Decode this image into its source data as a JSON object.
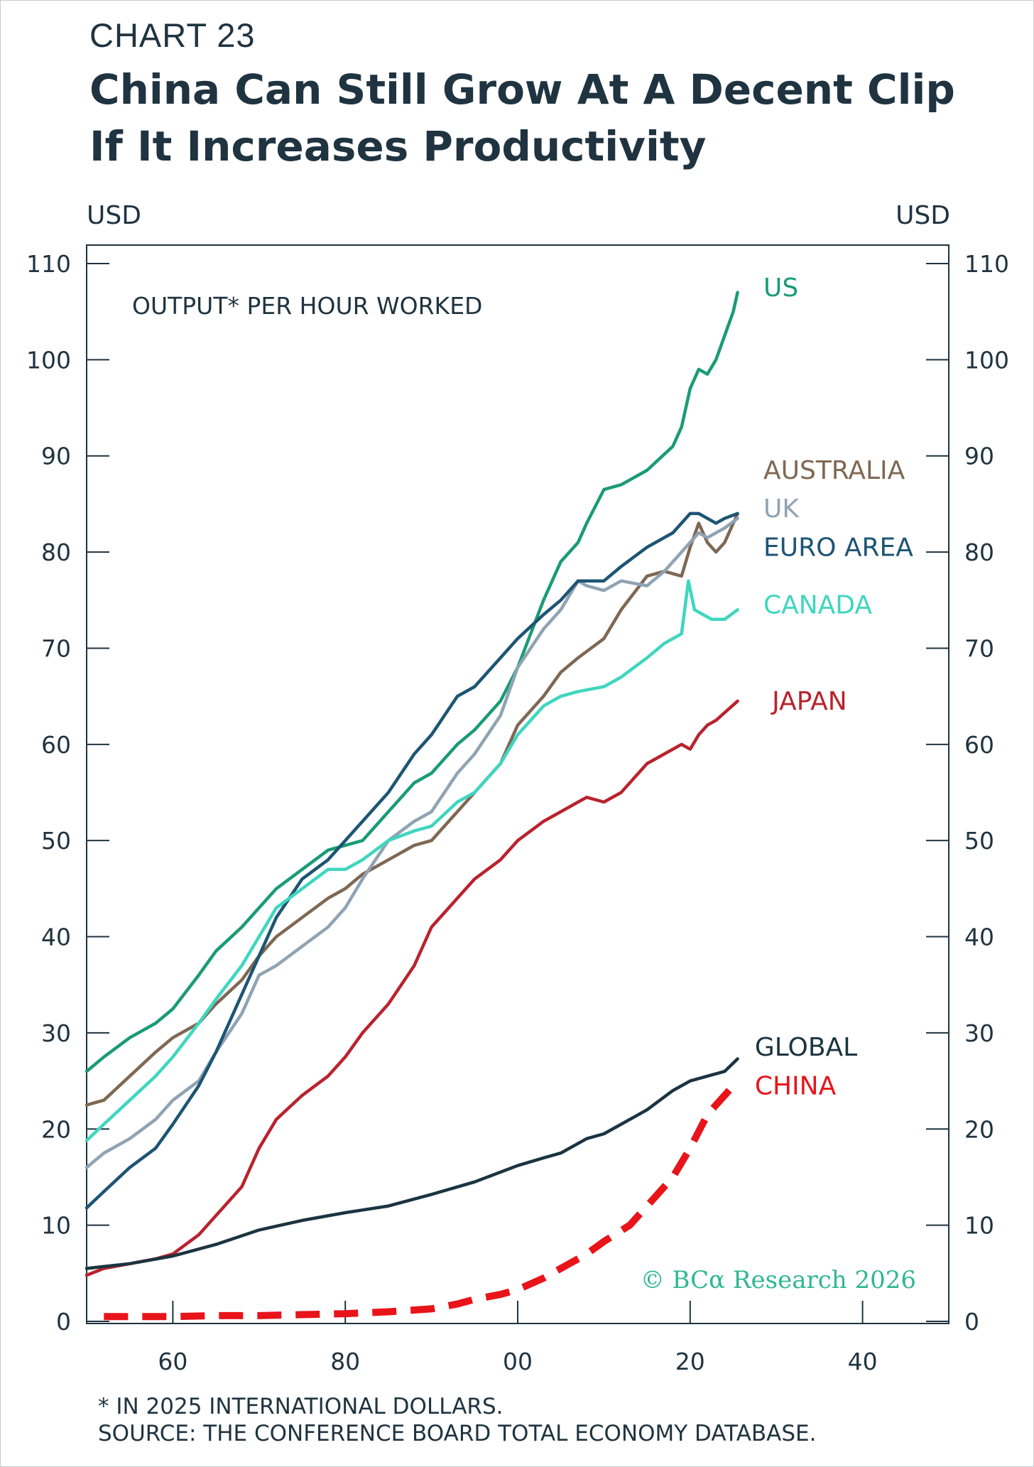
{
  "header": {
    "chart_number": "CHART 23",
    "title": "China Can Still Grow At A Decent Clip If It Increases Productivity"
  },
  "footnotes": {
    "note": "* IN 2025 INTERNATIONAL DOLLARS.",
    "source": "SOURCE: THE CONFERENCE BOARD TOTAL ECONOMY DATABASE."
  },
  "copyright": "© BCα Research 2026",
  "chart_data": {
    "type": "line",
    "subtitle": "OUTPUT* PER HOUR WORKED",
    "y_unit_left": "USD",
    "y_unit_right": "USD",
    "xlim": [
      1950,
      2050
    ],
    "ylim": [
      0,
      110
    ],
    "x_ticks": [
      1960,
      1980,
      2000,
      2020,
      2040
    ],
    "x_tick_labels": [
      "60",
      "80",
      "00",
      "20",
      "40"
    ],
    "y_ticks": [
      0,
      10,
      20,
      30,
      40,
      50,
      60,
      70,
      80,
      90,
      100,
      110
    ],
    "y_tick_labels": [
      "0",
      "10",
      "20",
      "30",
      "40",
      "50",
      "60",
      "70",
      "80",
      "90",
      "100",
      "110"
    ],
    "grid": false,
    "series": [
      {
        "name": "US",
        "color": "#1a9b76",
        "dashed": false,
        "label_anchor": [
          2028.5,
          107.5
        ],
        "x": [
          1950,
          1952,
          1955,
          1958,
          1960,
          1963,
          1965,
          1968,
          1970,
          1972,
          1975,
          1978,
          1980,
          1982,
          1985,
          1988,
          1990,
          1993,
          1995,
          1998,
          2000,
          2003,
          2005,
          2007,
          2008,
          2010,
          2012,
          2015,
          2018,
          2019,
          2020,
          2021,
          2022,
          2023,
          2025,
          2025.5
        ],
        "y": [
          26,
          27.5,
          29.5,
          31,
          32.5,
          36,
          38.5,
          41,
          43,
          45,
          47,
          49,
          49.5,
          50,
          53,
          56,
          57,
          60,
          61.5,
          64.5,
          68,
          75,
          79,
          81,
          83,
          86.5,
          87,
          88.5,
          91,
          93,
          97,
          99,
          98.5,
          100,
          105,
          107
        ]
      },
      {
        "name": "AUSTRALIA",
        "color": "#7f6853",
        "dashed": false,
        "label_anchor": [
          2028.5,
          88.5
        ],
        "x": [
          1950,
          1952,
          1955,
          1958,
          1960,
          1963,
          1965,
          1968,
          1970,
          1972,
          1975,
          1978,
          1980,
          1982,
          1985,
          1988,
          1990,
          1993,
          1995,
          1998,
          2000,
          2003,
          2005,
          2007,
          2010,
          2012,
          2015,
          2017,
          2019,
          2020,
          2021,
          2022,
          2023,
          2024,
          2025.5
        ],
        "y": [
          22.5,
          23,
          25.5,
          28,
          29.5,
          31,
          33,
          35.5,
          38,
          40,
          42,
          44,
          45,
          46.5,
          48,
          49.5,
          50,
          53,
          55,
          58,
          62,
          65,
          67.5,
          69,
          71,
          74,
          77.5,
          78,
          77.5,
          80.5,
          83,
          81,
          80,
          81,
          84
        ]
      },
      {
        "name": "UK",
        "color": "#8fa3b3",
        "dashed": false,
        "label_anchor": [
          2028.5,
          84.5
        ],
        "x": [
          1950,
          1952,
          1955,
          1958,
          1960,
          1963,
          1965,
          1968,
          1970,
          1972,
          1975,
          1978,
          1980,
          1982,
          1985,
          1988,
          1990,
          1993,
          1995,
          1998,
          2000,
          2003,
          2005,
          2007,
          2008,
          2010,
          2012,
          2015,
          2017,
          2019,
          2021,
          2022,
          2023,
          2024,
          2025.5
        ],
        "y": [
          16,
          17.5,
          19,
          21,
          23,
          25,
          28,
          32,
          36,
          37,
          39,
          41,
          43,
          46,
          50,
          52,
          53,
          57,
          59,
          63,
          68,
          72,
          74,
          77,
          76.5,
          76,
          77,
          76.5,
          78,
          80,
          82,
          81.5,
          82,
          82.5,
          83.5
        ]
      },
      {
        "name": "EURO AREA",
        "color": "#1d5573",
        "dashed": false,
        "label_anchor": [
          2028.5,
          80.5
        ],
        "x": [
          1950,
          1952,
          1955,
          1958,
          1960,
          1963,
          1965,
          1968,
          1970,
          1972,
          1975,
          1978,
          1980,
          1982,
          1985,
          1988,
          1990,
          1993,
          1995,
          1998,
          2000,
          2003,
          2005,
          2007,
          2008,
          2010,
          2012,
          2015,
          2018,
          2020,
          2021,
          2022,
          2023,
          2024,
          2025.5
        ],
        "y": [
          11.8,
          13.5,
          16,
          18,
          20.5,
          24.5,
          28,
          34,
          38,
          42,
          46,
          48,
          50,
          52,
          55,
          59,
          61,
          65,
          66,
          69,
          71,
          73.5,
          75,
          77,
          77,
          77,
          78.5,
          80.5,
          82,
          84,
          84,
          83.5,
          83,
          83.5,
          84
        ]
      },
      {
        "name": "CANADA",
        "color": "#3fd6bf",
        "dashed": false,
        "label_anchor": [
          2028.5,
          74.5
        ],
        "x": [
          1950,
          1952,
          1955,
          1958,
          1960,
          1963,
          1965,
          1968,
          1970,
          1972,
          1975,
          1978,
          1980,
          1982,
          1985,
          1988,
          1990,
          1993,
          1995,
          1998,
          2000,
          2003,
          2005,
          2007,
          2010,
          2012,
          2015,
          2017,
          2019,
          2019.8,
          2020.5,
          2021.5,
          2022.5,
          2024,
          2025.5
        ],
        "y": [
          18.8,
          20.5,
          23,
          25.5,
          27.5,
          31,
          33.5,
          37,
          40,
          43,
          45,
          47,
          47,
          48,
          50,
          51,
          51.5,
          54,
          55,
          58,
          61,
          64,
          65,
          65.5,
          66,
          67,
          69,
          70.5,
          71.5,
          77,
          74,
          73.5,
          73,
          73,
          74
        ]
      },
      {
        "name": "JAPAN",
        "color": "#b8232d",
        "dashed": false,
        "label_anchor": [
          2029.5,
          64.5
        ],
        "x": [
          1950,
          1952,
          1955,
          1958,
          1960,
          1963,
          1965,
          1968,
          1970,
          1972,
          1975,
          1978,
          1980,
          1982,
          1985,
          1988,
          1990,
          1993,
          1995,
          1998,
          2000,
          2003,
          2005,
          2007,
          2008,
          2010,
          2012,
          2015,
          2018,
          2019,
          2020,
          2021,
          2022,
          2023,
          2025.5
        ],
        "y": [
          4.8,
          5.5,
          6,
          6.5,
          7,
          9,
          11,
          14,
          18,
          21,
          23.5,
          25.5,
          27.5,
          30,
          33,
          37,
          41,
          44,
          46,
          48,
          50,
          52,
          53,
          54,
          54.5,
          54,
          55,
          58,
          59.5,
          60,
          59.5,
          61,
          62,
          62.5,
          64.5
        ]
      },
      {
        "name": "GLOBAL",
        "color": "#1b3440",
        "dashed": false,
        "label_anchor": [
          2027.5,
          28.5
        ],
        "x": [
          1950,
          1955,
          1960,
          1965,
          1970,
          1975,
          1980,
          1985,
          1990,
          1995,
          2000,
          2003,
          2005,
          2008,
          2010,
          2012,
          2015,
          2018,
          2020,
          2022,
          2024,
          2025.5
        ],
        "y": [
          5.5,
          6,
          6.8,
          8,
          9.5,
          10.5,
          11.3,
          12,
          13.2,
          14.5,
          16.2,
          17,
          17.5,
          19,
          19.5,
          20.5,
          22,
          24,
          25,
          25.5,
          26,
          27.3
        ]
      },
      {
        "name": "CHINA",
        "color": "#e8141a",
        "dashed": true,
        "label_anchor": [
          2027.5,
          24.5
        ],
        "x": [
          1952,
          1955,
          1960,
          1965,
          1970,
          1975,
          1980,
          1985,
          1990,
          1993,
          1995,
          1998,
          2000,
          2003,
          2005,
          2008,
          2010,
          2013,
          2015,
          2018,
          2020,
          2022,
          2024,
          2025.5
        ],
        "y": [
          0.5,
          0.5,
          0.5,
          0.6,
          0.6,
          0.7,
          0.8,
          1,
          1.3,
          1.8,
          2.3,
          2.8,
          3.3,
          4.5,
          5.5,
          7,
          8.3,
          10,
          12,
          15,
          18,
          21.5,
          23.5,
          25
        ]
      }
    ]
  }
}
